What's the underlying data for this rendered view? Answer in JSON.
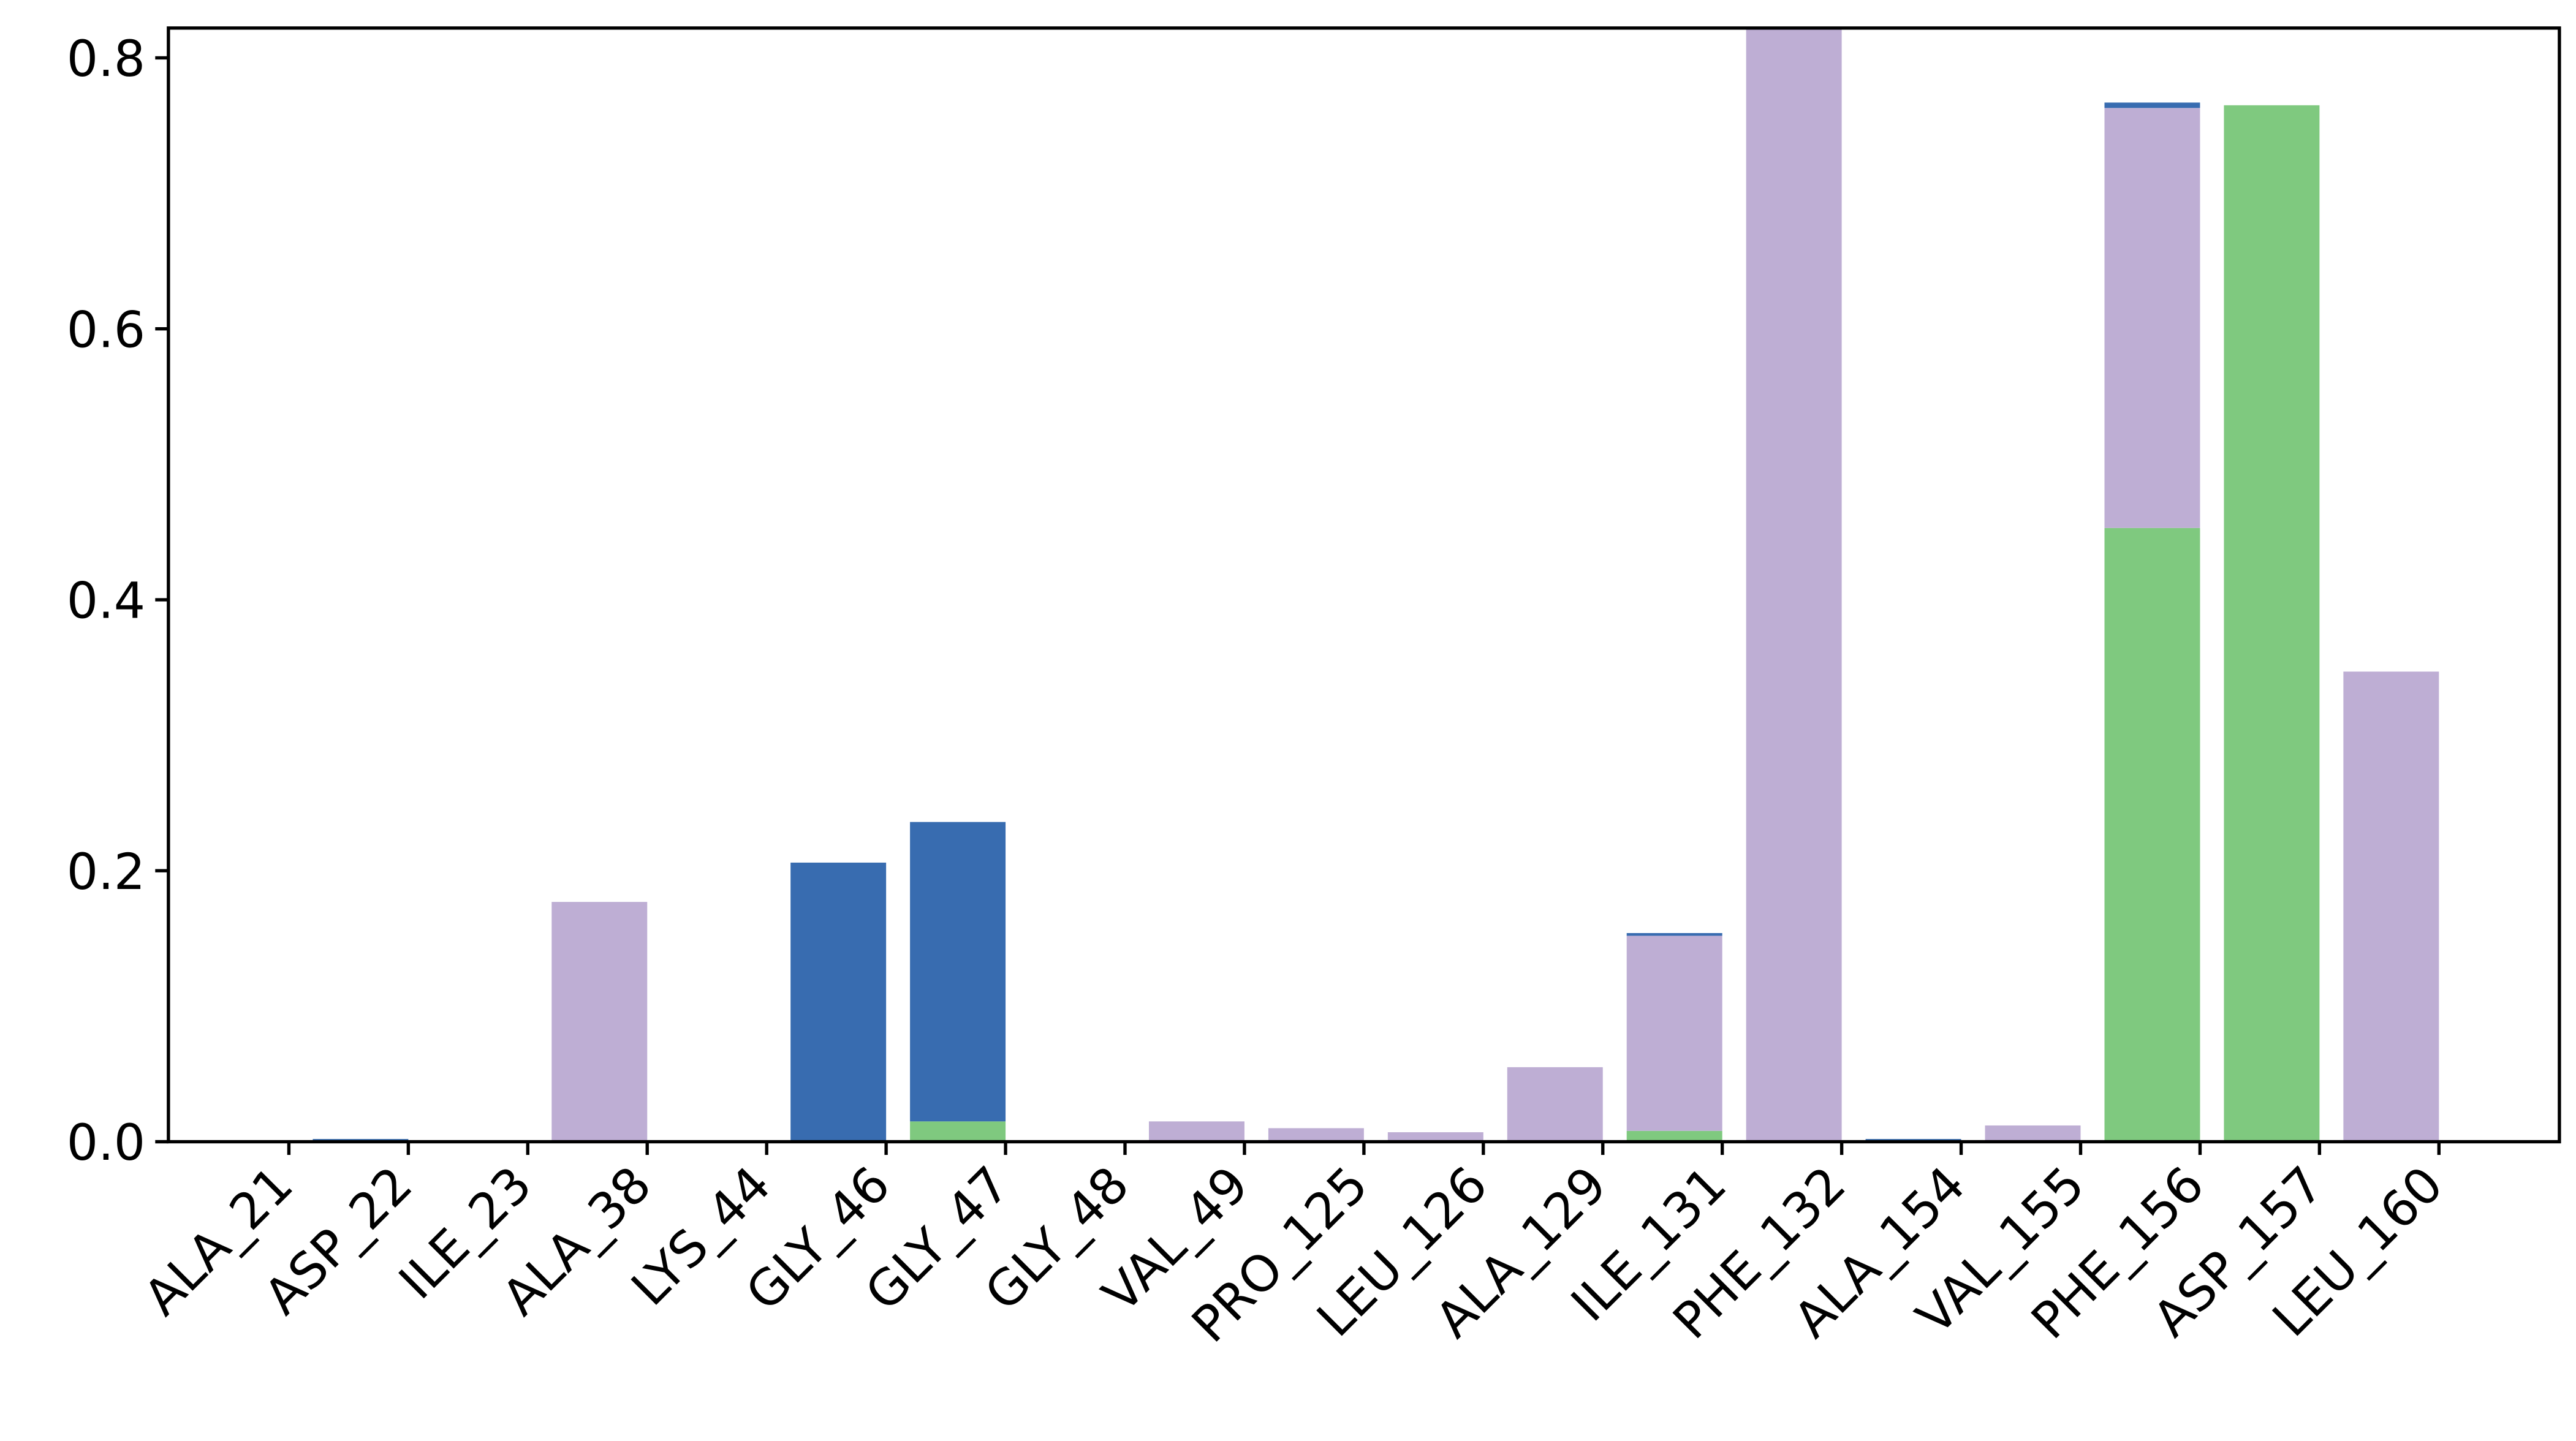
{
  "chart_data": {
    "type": "stacked_bar",
    "categories": [
      "ALA_21",
      "ASP_22",
      "ILE_23",
      "ALA_38",
      "LYS_44",
      "GLY_46",
      "GLY_47",
      "GLY_48",
      "VAL_49",
      "PRO_125",
      "LEU_126",
      "ALA_129",
      "ILE_131",
      "PHE_132",
      "ALA_154",
      "VAL_155",
      "PHE_156",
      "ASP_157",
      "LEU_160"
    ],
    "series": [
      {
        "color": "#7fc97f",
        "values": [
          0,
          0,
          0,
          0,
          0,
          0,
          0.015,
          0,
          0,
          0,
          0,
          0,
          0.008,
          0,
          0,
          0,
          0.453,
          0.765,
          0
        ]
      },
      {
        "color": "#beaed4",
        "values": [
          0,
          0,
          0,
          0.177,
          0,
          0,
          0,
          0,
          0.015,
          0.01,
          0.007,
          0.055,
          0.144,
          0.83,
          0,
          0.012,
          0.31,
          0,
          0.347
        ]
      },
      {
        "color": "#386cb0",
        "values": [
          0,
          0.002,
          0,
          0,
          0,
          0.206,
          0.221,
          0,
          0,
          0,
          0,
          0,
          0.002,
          0,
          0.002,
          0,
          0.004,
          0,
          0
        ]
      }
    ],
    "ylim": [
      0,
      0.822
    ],
    "yticks": [
      {
        "value": 0,
        "label": "0.0"
      },
      0.2,
      0.4,
      0.6,
      0.8
    ]
  }
}
